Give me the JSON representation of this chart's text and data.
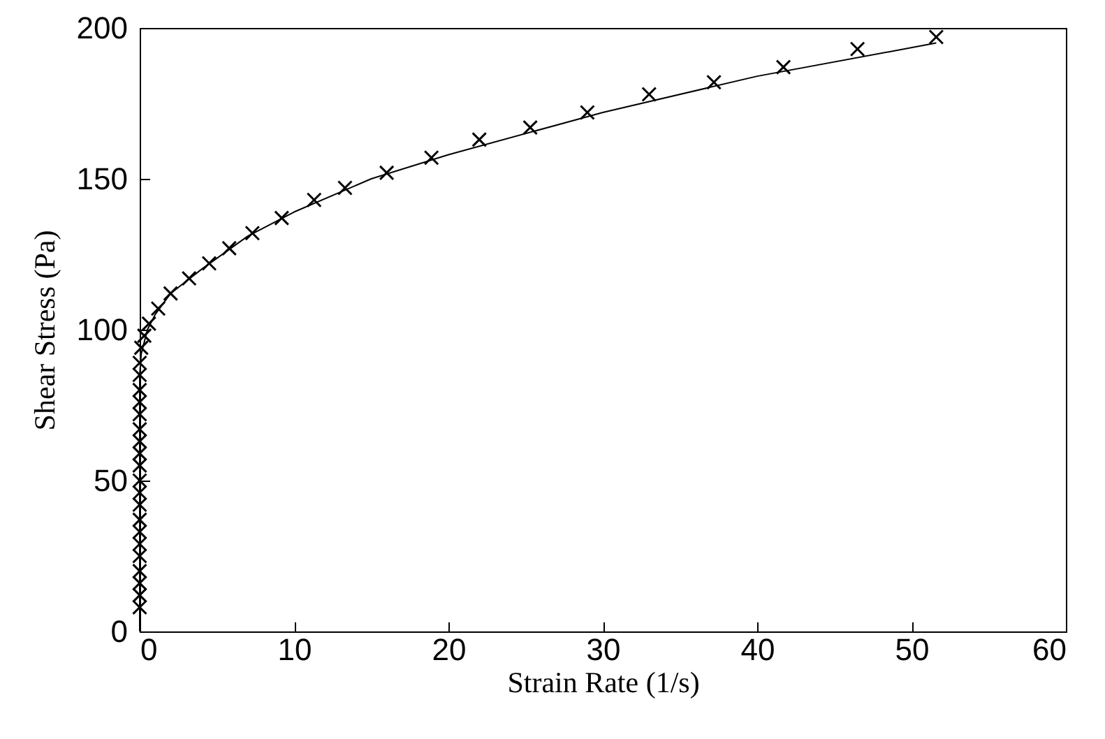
{
  "chart_data": {
    "type": "scatter",
    "xlabel": "Strain Rate (1/s)",
    "ylabel": "Shear Stress (Pa)",
    "xlim": [
      0,
      60
    ],
    "xticks": [
      0,
      10,
      20,
      30,
      40,
      50,
      60
    ],
    "ylim": [
      0,
      200
    ],
    "yticks": [
      0,
      50,
      100,
      150,
      200
    ],
    "grid": false,
    "marker": "cross",
    "series": [
      {
        "color": "#000000",
        "x": [
          0,
          0,
          0,
          0,
          0,
          0,
          0,
          0,
          0,
          0,
          0,
          0,
          0,
          0,
          0,
          0,
          0,
          0,
          0,
          0,
          0.1,
          0.3,
          0.6,
          1.2,
          2,
          3.2,
          4.5,
          5.8,
          7.3,
          9.2,
          11.3,
          13.3,
          16,
          18.9,
          22,
          25.3,
          29,
          33,
          37.2,
          41.7,
          46.5,
          51.6
        ],
        "values": [
          8,
          12,
          16,
          20,
          25,
          29,
          33,
          37,
          42,
          46,
          50,
          55,
          59,
          63,
          67,
          72,
          76,
          80,
          85,
          89,
          94,
          98,
          102,
          107,
          112,
          117,
          122,
          127,
          132,
          137,
          143,
          147,
          152,
          157,
          163,
          167,
          172,
          178,
          182,
          187,
          193,
          197
        ]
      },
      {
        "type": "line",
        "color": "#000000",
        "marker": "none",
        "x": [
          0,
          0,
          0.1,
          0.5,
          1,
          2,
          4,
          7,
          10,
          15,
          20,
          30,
          40,
          51.6
        ],
        "values": [
          0,
          85,
          92,
          100,
          105,
          112,
          120,
          131,
          139,
          150,
          158,
          172,
          184,
          195
        ]
      }
    ]
  }
}
